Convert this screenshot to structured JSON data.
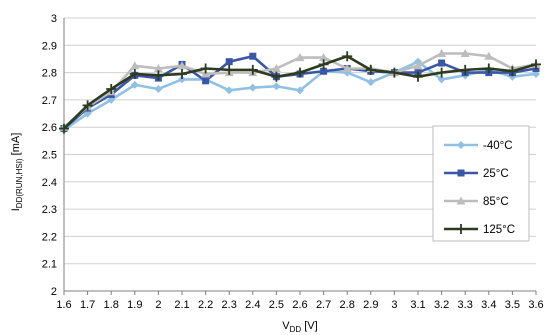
{
  "chart_data": {
    "type": "line",
    "title": "",
    "ylabel": {
      "main": "I",
      "sub": "DD(RUN,HSI)",
      "unit": " [mA]"
    },
    "xlabel": {
      "main": "V",
      "sub": "DD",
      "unit": " [V]"
    },
    "x": [
      1.6,
      1.7,
      1.8,
      1.9,
      2.0,
      2.1,
      2.2,
      2.3,
      2.4,
      2.5,
      2.6,
      2.7,
      2.8,
      2.9,
      3.0,
      3.1,
      3.2,
      3.3,
      3.4,
      3.5,
      3.6
    ],
    "x_tick_labels": [
      "1.6",
      "1.7",
      "1.8",
      "1.9",
      "2",
      "2.1",
      "2.2",
      "2.3",
      "2.4",
      "2.5",
      "2.6",
      "2.7",
      "2.8",
      "2.9",
      "3",
      "3.1",
      "3.2",
      "3.3",
      "3.4",
      "3.5",
      "3.6"
    ],
    "xlim": [
      1.6,
      3.6
    ],
    "ylim": [
      2.0,
      3.0
    ],
    "y_ticks": [
      2,
      2.1,
      2.2,
      2.3,
      2.4,
      2.5,
      2.6,
      2.7,
      2.8,
      2.9,
      3
    ],
    "y_tick_labels": [
      "2",
      "2.1",
      "2.2",
      "2.3",
      "2.4",
      "2.5",
      "2.6",
      "2.7",
      "2.8",
      "2.9",
      "3"
    ],
    "grid": "horizontal",
    "legend_position": "right",
    "series": [
      {
        "name": "-40°C",
        "color": "#8EC1E3",
        "marker": "diamond",
        "values": [
          2.59,
          2.65,
          2.7,
          2.755,
          2.74,
          2.775,
          2.775,
          2.735,
          2.745,
          2.75,
          2.735,
          2.805,
          2.8,
          2.765,
          2.8,
          2.84,
          2.775,
          2.79,
          2.81,
          2.785,
          2.795
        ]
      },
      {
        "name": "25°C",
        "color": "#3A57A7",
        "marker": "square",
        "values": [
          2.595,
          2.67,
          2.72,
          2.79,
          2.78,
          2.83,
          2.77,
          2.84,
          2.86,
          2.785,
          2.795,
          2.805,
          2.815,
          2.805,
          2.8,
          2.8,
          2.835,
          2.8,
          2.8,
          2.8,
          2.815
        ]
      },
      {
        "name": "85°C",
        "color": "#BDBDBD",
        "marker": "triangle",
        "values": [
          2.6,
          2.675,
          2.73,
          2.825,
          2.815,
          2.825,
          2.795,
          2.8,
          2.8,
          2.815,
          2.855,
          2.855,
          2.815,
          2.815,
          2.8,
          2.825,
          2.87,
          2.87,
          2.86,
          2.815,
          2.83
        ]
      },
      {
        "name": "125°C",
        "color": "#2D3B1E",
        "marker": "plus",
        "values": [
          2.595,
          2.68,
          2.74,
          2.795,
          2.79,
          2.795,
          2.815,
          2.81,
          2.81,
          2.785,
          2.8,
          2.83,
          2.86,
          2.81,
          2.8,
          2.785,
          2.8,
          2.81,
          2.815,
          2.805,
          2.83
        ]
      }
    ]
  }
}
